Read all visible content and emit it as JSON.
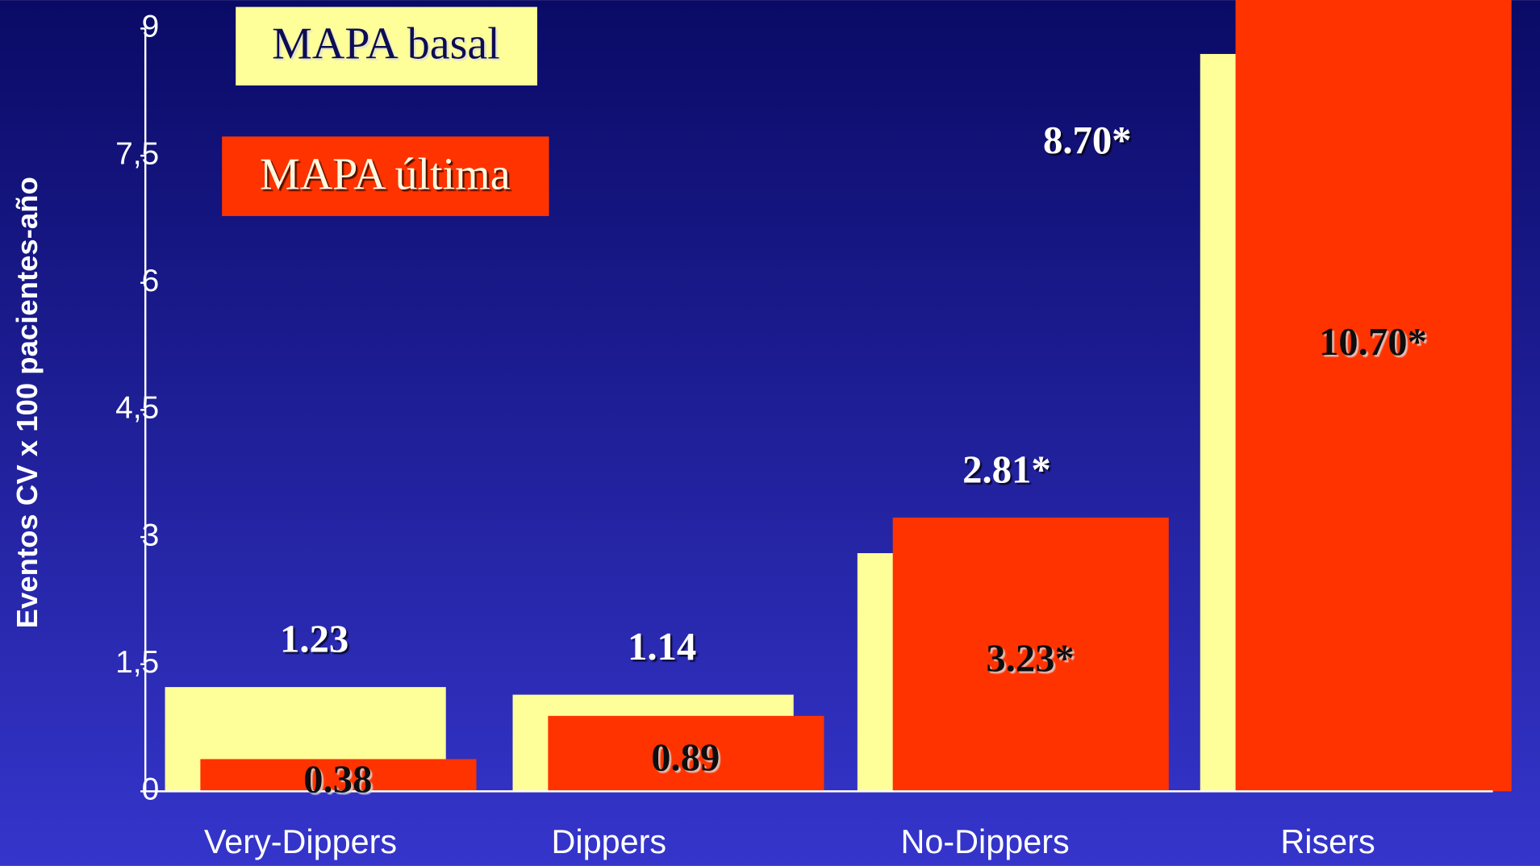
{
  "chart_data": {
    "type": "bar",
    "y_label": "Eventos CV x 100 pacientes-año",
    "categories": [
      "Very-Dippers",
      "Dippers",
      "No-Dippers",
      "Risers"
    ],
    "series": [
      {
        "name": "MAPA basal",
        "color": "#ffff99",
        "values": [
          1.23,
          1.14,
          2.81,
          8.7
        ],
        "value_labels": [
          "1.23",
          "1.14",
          "2.81*",
          "8.70*"
        ]
      },
      {
        "name": "MAPA última",
        "color": "#ff3300",
        "values": [
          0.38,
          0.89,
          3.23,
          10.7
        ],
        "value_labels": [
          "0.38",
          "0.89",
          "3.23*",
          "10.70*"
        ]
      }
    ],
    "ylim": [
      0,
      9
    ],
    "yticks": [
      0,
      {
        "value": 1.5,
        "label": "1,5"
      },
      3,
      {
        "value": 4.5,
        "label": "4,5"
      },
      6,
      {
        "value": 7.5,
        "label": "7,5"
      },
      9
    ]
  }
}
